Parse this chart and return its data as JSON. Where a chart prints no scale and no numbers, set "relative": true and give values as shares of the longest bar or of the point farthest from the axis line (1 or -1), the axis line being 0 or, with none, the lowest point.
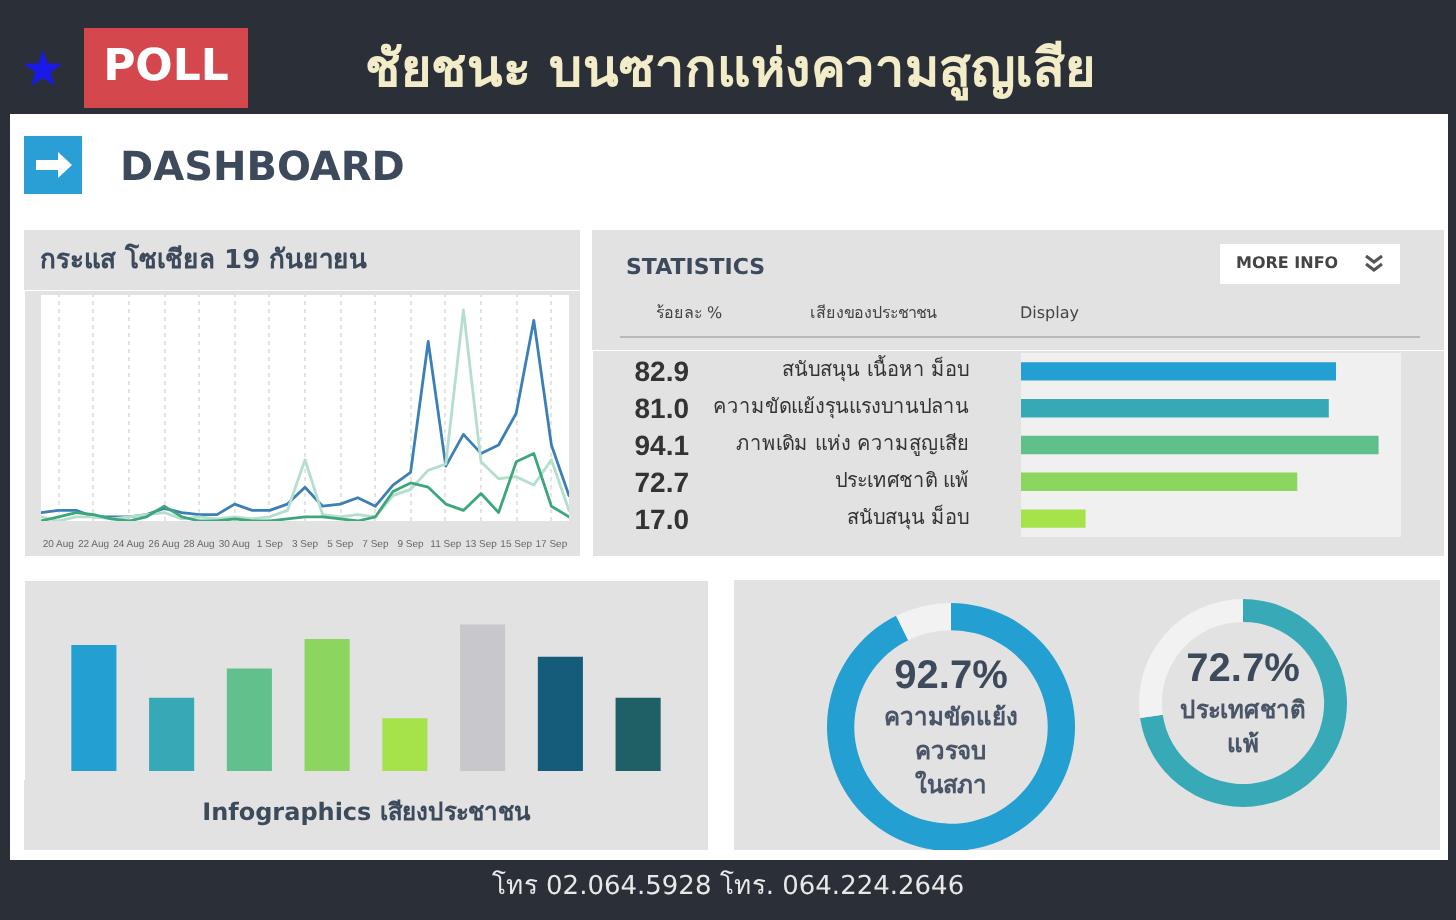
{
  "chart_data": [
    {
      "type": "other",
      "title": "ชัยชนะ บนซากแห่งความสูญเสีย",
      "annotations": [
        "POLL",
        "DASHBOARD"
      ]
    },
    {
      "type": "line",
      "title": "กระแส โซเชียล 19 กันยายน",
      "relative": true,
      "grid": "x",
      "tick_labels": "x",
      "categories": [
        null,
        "20 Aug",
        null,
        "22 Aug",
        null,
        "24 Aug",
        null,
        "26 Aug",
        null,
        "28 Aug",
        null,
        "30 Aug",
        null,
        "1 Sep",
        null,
        "3 Sep",
        null,
        "5 Sep",
        null,
        "7 Sep",
        null,
        "9 Sep",
        null,
        "11 Sep",
        null,
        "13 Sep",
        null,
        "15 Sep",
        null,
        "17 Sep",
        null
      ],
      "series": [
        {
          "color": "#3b7fb6",
          "values": [
            0.04,
            0.05,
            0.05,
            0.02,
            0.02,
            0.02,
            0.03,
            0.06,
            0.04,
            0.03,
            0.03,
            0.08,
            0.05,
            0.05,
            0.08,
            0.16,
            0.07,
            0.08,
            0.11,
            0.07,
            0.17,
            0.23,
            0.85,
            0.26,
            0.41,
            0.32,
            0.36,
            0.51,
            0.95,
            0.36,
            0.12
          ]
        },
        {
          "color": "#b3dfcc",
          "values": [
            0.02,
            0,
            0.02,
            0.02,
            0.01,
            0.02,
            0.03,
            0.04,
            0.01,
            0.02,
            0.01,
            0.02,
            0.01,
            0.02,
            0.05,
            0.29,
            0.03,
            0.02,
            0.03,
            0.02,
            0.12,
            0.15,
            0.24,
            0.27,
            1,
            0.28,
            0.2,
            0.21,
            0.17,
            0.29,
            0.05
          ]
        },
        {
          "color": "#3da77c",
          "values": [
            0,
            0.02,
            0.04,
            0.03,
            0.01,
            0,
            0.02,
            0.07,
            0.02,
            0,
            0,
            0.01,
            0,
            0,
            0.01,
            0.02,
            0.02,
            0.01,
            0,
            0.02,
            0.14,
            0.18,
            0.16,
            0.08,
            0.05,
            0.13,
            0.04,
            0.28,
            0.32,
            0.07,
            0.02
          ]
        }
      ]
    },
    {
      "type": "bar",
      "orientation": "horizontal",
      "title": "STATISTICS",
      "categories": [
        "สนับสนุน เนื้อหา ม็อบ",
        "ความขัดแย้งรุนแรงบานปลาน",
        "ภาพเดิม แห่ง ความสูญเสีย",
        "ประเทศชาติ แพ้",
        "สนับสนุน ม็อบ"
      ],
      "values": [
        82.9,
        81.0,
        94.1,
        72.7,
        17.0
      ],
      "colors": [
        "#239fd1",
        "#36a8b6",
        "#5fc08c",
        "#8cd660",
        "#a6e24a"
      ],
      "value_labels": [
        "82.9",
        "81.0",
        "94.1",
        "72.7",
        "17.0"
      ],
      "xlim": [
        0,
        100
      ],
      "tick_labels": "y",
      "annotations": [
        "MORE INFO",
        "ร้อยละ %",
        "เสียงของประชาชน",
        "Display"
      ]
    },
    {
      "type": "bar",
      "title": "Infographics เสียงประชาชน",
      "relative": true,
      "tick_labels": false,
      "categories": [
        null,
        null,
        null,
        null,
        null,
        null,
        null,
        null
      ],
      "values": [
        0.86,
        0.5,
        0.7,
        0.9,
        0.36,
        1,
        0.78,
        0.5
      ],
      "colors": [
        "#239fd1",
        "#36a8b6",
        "#61c08c",
        "#8cd660",
        "#a6e24a",
        "#c8c8cc",
        "#155c7a",
        "#1f5f66"
      ]
    },
    {
      "type": "donut",
      "categories": [
        "ความขัดแย้ง ควรจบ ในสภา",
        null
      ],
      "values": [
        92.7,
        7.3
      ],
      "colors": [
        "#239fd1",
        "#f2f2f2"
      ],
      "value_labels": [
        "92.7%",
        null
      ]
    },
    {
      "type": "donut",
      "categories": [
        "ประเทศชาติ แพ้",
        null
      ],
      "values": [
        72.7,
        27.3
      ],
      "colors": [
        "#38a9b6",
        "#f2f2f2"
      ],
      "value_labels": [
        "72.7%",
        null
      ]
    },
    {
      "type": "other",
      "annotations": [
        "โทร 02.064.5928  โทร. 064.224.2646"
      ]
    }
  ]
}
